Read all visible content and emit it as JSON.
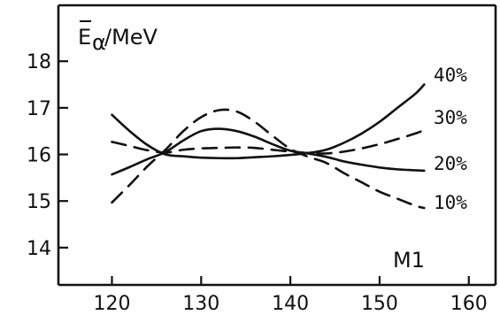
{
  "chart_data": {
    "type": "line",
    "ylabel_main": "E",
    "ylabel_sub": "α",
    "ylabel_unit": "/MeV",
    "panel_label": "M1",
    "xlim": [
      114,
      163
    ],
    "ylim": [
      13.2,
      19.2
    ],
    "x_ticks": [
      120,
      130,
      140,
      150,
      160
    ],
    "x_tick_labels": [
      "120",
      "130",
      "140",
      "150",
      "160"
    ],
    "y_ticks": [
      14,
      15,
      16,
      17,
      18
    ],
    "y_tick_labels": [
      "14",
      "15",
      "16",
      "17",
      "18"
    ],
    "grid": false,
    "legend": "right, labels next to line ends",
    "series": [
      {
        "name": "40%",
        "dash": "solid",
        "x": [
          120,
          122,
          124,
          126,
          128,
          130,
          132,
          134,
          136,
          138,
          140,
          142,
          144,
          146,
          148,
          150,
          152,
          154,
          155
        ],
        "values": [
          16.85,
          16.5,
          16.2,
          16.0,
          15.96,
          15.93,
          15.92,
          15.92,
          15.94,
          15.96,
          15.99,
          16.03,
          16.1,
          16.25,
          16.45,
          16.7,
          17.0,
          17.3,
          17.5
        ]
      },
      {
        "name": "30%",
        "dash": "dashed",
        "x": [
          120,
          122,
          124,
          126,
          128,
          130,
          132,
          134,
          136,
          138,
          140,
          142,
          144,
          146,
          148,
          150,
          152,
          154,
          155
        ],
        "values": [
          16.27,
          16.18,
          16.09,
          16.04,
          16.1,
          16.13,
          16.14,
          16.15,
          16.14,
          16.1,
          16.06,
          16.03,
          16.02,
          16.06,
          16.13,
          16.22,
          16.33,
          16.45,
          16.52
        ]
      },
      {
        "name": "20%",
        "dash": "solid",
        "x": [
          120,
          122,
          124,
          126,
          128,
          130,
          132,
          134,
          136,
          138,
          140,
          142,
          144,
          146,
          148,
          150,
          152,
          154,
          155
        ],
        "values": [
          15.57,
          15.73,
          15.9,
          16.05,
          16.3,
          16.5,
          16.55,
          16.5,
          16.38,
          16.22,
          16.08,
          16.02,
          15.95,
          15.85,
          15.78,
          15.72,
          15.68,
          15.66,
          15.65
        ]
      },
      {
        "name": "10%",
        "dash": "dashed",
        "x": [
          120,
          122,
          124,
          126,
          128,
          130,
          132,
          134,
          136,
          138,
          140,
          142,
          144,
          146,
          148,
          150,
          152,
          154,
          155
        ],
        "values": [
          14.97,
          15.35,
          15.75,
          16.1,
          16.5,
          16.8,
          16.95,
          16.92,
          16.7,
          16.4,
          16.12,
          15.95,
          15.82,
          15.6,
          15.4,
          15.2,
          15.05,
          14.9,
          14.85
        ]
      }
    ]
  }
}
